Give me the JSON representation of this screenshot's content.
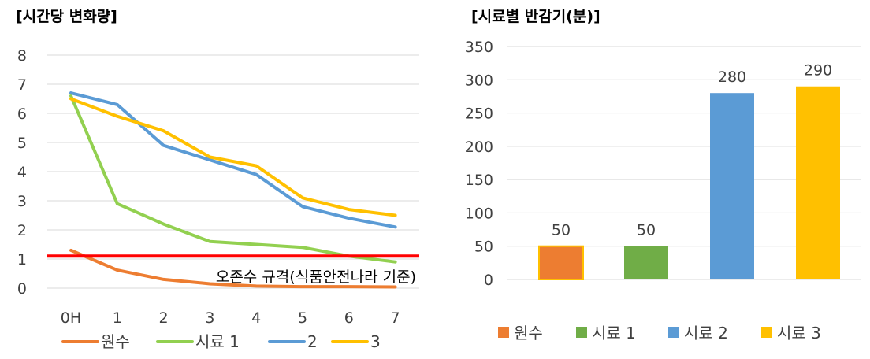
{
  "chart_data": [
    {
      "type": "line",
      "title": "[시간당 변화량]",
      "categories": [
        "0H",
        "1",
        "2",
        "3",
        "4",
        "5",
        "6",
        "7"
      ],
      "ylim": [
        0,
        8
      ],
      "yticks": [
        "0",
        "1",
        "2",
        "3",
        "4",
        "5",
        "6",
        "7",
        "8"
      ],
      "grid": true,
      "legend": "bottom",
      "series": [
        {
          "name": "원수",
          "color": "#ED7D31",
          "values": [
            1.3,
            0.62,
            0.3,
            0.15,
            0.07,
            0.05,
            0.05,
            0.04
          ]
        },
        {
          "name": "시료 1",
          "color": "#92D050",
          "values": [
            6.6,
            2.9,
            2.2,
            1.6,
            1.5,
            1.4,
            1.1,
            0.9
          ]
        },
        {
          "name": "2",
          "color": "#5B9BD5",
          "values": [
            6.7,
            6.3,
            4.9,
            4.4,
            3.9,
            2.8,
            2.4,
            2.1
          ]
        },
        {
          "name": "3",
          "color": "#FFC000",
          "values": [
            6.5,
            5.9,
            5.4,
            4.5,
            4.2,
            3.1,
            2.7,
            2.5
          ]
        }
      ],
      "reference_line": {
        "value": 1.1,
        "color": "#FF0000",
        "label": "오존수 규격(식품안전나라 기준)"
      }
    },
    {
      "type": "bar",
      "title": "[시료별 반감기(분)]",
      "categories": [
        "원수",
        "시료 1",
        "시료 2",
        "시료 3"
      ],
      "values": [
        50,
        50,
        280,
        290
      ],
      "data_labels": [
        "50",
        "50",
        "280",
        "290"
      ],
      "colors": [
        "#ED7D31",
        "#70AD47",
        "#5B9BD5",
        "#FFC000"
      ],
      "ylim": [
        0,
        350
      ],
      "yticks": [
        "0",
        "50",
        "100",
        "150",
        "200",
        "250",
        "300",
        "350"
      ],
      "grid": true,
      "legend": "bottom"
    }
  ]
}
